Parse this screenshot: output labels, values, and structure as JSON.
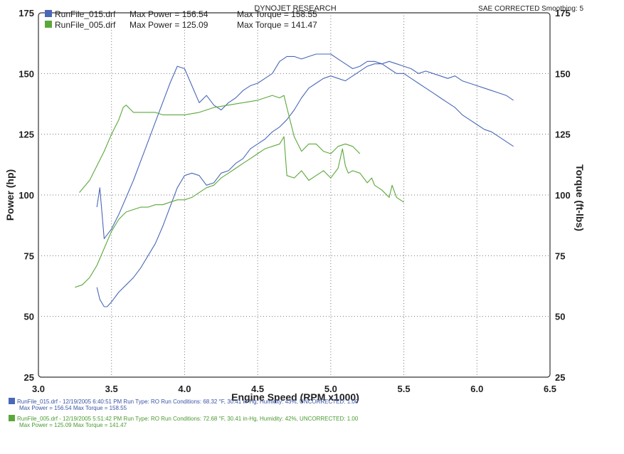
{
  "header": {
    "title": "DYNOJET RESEARCH",
    "corner_text": "SAE CORRECTED Smoothing: 5"
  },
  "legend": [
    {
      "file": "RunFile_015.drf",
      "max_power_label": "Max Power = 156.54",
      "max_torque_label": "Max Torque = 158.55",
      "color": "#4a68b8"
    },
    {
      "file": "RunFile_005.drf",
      "max_power_label": "Max Power = 125.09",
      "max_torque_label": "Max Torque = 141.47",
      "color": "#5ba83a"
    }
  ],
  "footer": [
    {
      "line1": "RunFile_015.drf - 12/19/2005 6:40:51 PM  Run Type: RO  Run Conditions: 68.32 °F, 30.41 in-Hg,  Humidity: 43%, UNCORRECTED: 1.00",
      "line2": "Max Power = 156.54  Max Torque = 158.55"
    },
    {
      "line1": "RunFile_005.drf - 12/19/2005 5:51:42 PM  Run Type: RO  Run Conditions: 72.68 °F, 30.41 in-Hg,  Humidity: 42%, UNCORRECTED: 1.00",
      "line2": "Max Power = 125.09  Max Torque = 141.47"
    }
  ],
  "chart_data": {
    "type": "line",
    "xlabel": "Engine Speed (RPM x1000)",
    "ylabel": "Power (hp)",
    "y2label": "Torque (ft-lbs)",
    "xlim": [
      3.0,
      6.5
    ],
    "ylim": [
      25,
      175
    ],
    "y2lim": [
      25,
      175
    ],
    "x_ticks": [
      "3.0",
      "3.5",
      "4.0",
      "4.5",
      "5.0",
      "5.5",
      "6.0",
      "6.5"
    ],
    "y_ticks": [
      "25",
      "50",
      "75",
      "100",
      "125",
      "150",
      "175"
    ],
    "y2_ticks": [
      "25",
      "50",
      "75",
      "100",
      "125",
      "150",
      "175"
    ],
    "grid": true,
    "series": [
      {
        "name": "RunFile_015.drf Power",
        "color": "#4a68b8",
        "axis": "left",
        "x": [
          3.4,
          3.42,
          3.45,
          3.47,
          3.5,
          3.55,
          3.6,
          3.65,
          3.7,
          3.75,
          3.8,
          3.85,
          3.9,
          3.95,
          4.0,
          4.05,
          4.1,
          4.15,
          4.2,
          4.25,
          4.3,
          4.35,
          4.4,
          4.45,
          4.5,
          4.55,
          4.6,
          4.65,
          4.7,
          4.75,
          4.8,
          4.85,
          4.9,
          4.95,
          5.0,
          5.05,
          5.1,
          5.15,
          5.2,
          5.25,
          5.3,
          5.35,
          5.4,
          5.45,
          5.5,
          5.55,
          5.6,
          5.65,
          5.7,
          5.75,
          5.8,
          5.85,
          5.9,
          5.95,
          6.0,
          6.05,
          6.1,
          6.15,
          6.2,
          6.25
        ],
        "y": [
          62,
          57,
          54,
          54,
          56,
          60,
          63,
          66,
          70,
          75,
          80,
          87,
          95,
          103,
          108,
          109,
          108,
          104,
          105,
          109,
          110,
          113,
          115,
          119,
          121,
          123,
          126,
          128,
          131,
          135,
          140,
          144,
          146,
          148,
          149,
          148,
          147,
          149,
          151,
          153,
          154,
          154,
          155,
          154,
          153,
          152,
          150,
          151,
          150,
          149,
          148,
          149,
          147,
          146,
          145,
          144,
          143,
          142,
          141,
          139
        ]
      },
      {
        "name": "RunFile_015.drf Torque",
        "color": "#4a68b8",
        "axis": "right",
        "x": [
          3.4,
          3.42,
          3.45,
          3.5,
          3.55,
          3.6,
          3.65,
          3.7,
          3.75,
          3.8,
          3.85,
          3.9,
          3.95,
          4.0,
          4.05,
          4.1,
          4.15,
          4.2,
          4.25,
          4.3,
          4.35,
          4.4,
          4.45,
          4.5,
          4.55,
          4.6,
          4.65,
          4.7,
          4.75,
          4.8,
          4.85,
          4.9,
          4.95,
          5.0,
          5.05,
          5.1,
          5.15,
          5.2,
          5.25,
          5.3,
          5.35,
          5.4,
          5.45,
          5.5,
          5.55,
          5.6,
          5.65,
          5.7,
          5.75,
          5.8,
          5.85,
          5.9,
          5.95,
          6.0,
          6.05,
          6.1,
          6.15,
          6.2,
          6.25
        ],
        "y": [
          95,
          103,
          82,
          86,
          92,
          99,
          106,
          114,
          122,
          130,
          138,
          146,
          153,
          152,
          145,
          138,
          141,
          137,
          135,
          138,
          140,
          143,
          145,
          146,
          148,
          150,
          155,
          157,
          157,
          156,
          157,
          158,
          158,
          158,
          156,
          154,
          152,
          153,
          155,
          155,
          154,
          152,
          150,
          150,
          148,
          146,
          144,
          142,
          140,
          138,
          136,
          133,
          131,
          129,
          127,
          126,
          124,
          122,
          120
        ]
      },
      {
        "name": "RunFile_005.drf Power",
        "color": "#5ba83a",
        "axis": "left",
        "x": [
          3.25,
          3.3,
          3.35,
          3.4,
          3.45,
          3.5,
          3.55,
          3.6,
          3.65,
          3.7,
          3.75,
          3.8,
          3.85,
          3.9,
          3.95,
          4.0,
          4.05,
          4.1,
          4.15,
          4.2,
          4.25,
          4.3,
          4.35,
          4.4,
          4.45,
          4.5,
          4.55,
          4.6,
          4.65,
          4.68,
          4.7,
          4.75,
          4.8,
          4.85,
          4.9,
          4.95,
          5.0,
          5.05,
          5.08,
          5.1,
          5.12,
          5.15,
          5.2,
          5.25,
          5.28,
          5.3,
          5.35,
          5.4,
          5.42,
          5.45,
          5.5
        ],
        "y": [
          62,
          63,
          66,
          71,
          78,
          85,
          90,
          93,
          94,
          95,
          95,
          96,
          96,
          97,
          98,
          98,
          99,
          101,
          103,
          104,
          107,
          109,
          111,
          113,
          115,
          117,
          119,
          120,
          121,
          124,
          108,
          107,
          110,
          106,
          108,
          110,
          107,
          111,
          119,
          112,
          109,
          110,
          109,
          105,
          107,
          104,
          102,
          99,
          104,
          99,
          97
        ]
      },
      {
        "name": "RunFile_005.drf Torque",
        "color": "#5ba83a",
        "axis": "right",
        "x": [
          3.28,
          3.35,
          3.4,
          3.45,
          3.5,
          3.55,
          3.58,
          3.6,
          3.65,
          3.7,
          3.75,
          3.8,
          3.85,
          3.9,
          3.95,
          4.0,
          4.1,
          4.2,
          4.3,
          4.4,
          4.5,
          4.55,
          4.6,
          4.65,
          4.68,
          4.7,
          4.75,
          4.8,
          4.85,
          4.9,
          4.95,
          5.0,
          5.05,
          5.1,
          5.15,
          5.2
        ],
        "y": [
          101,
          106,
          112,
          118,
          125,
          131,
          136,
          137,
          134,
          134,
          134,
          134,
          133,
          133,
          133,
          133,
          134,
          136,
          137,
          138,
          139,
          140,
          141,
          140,
          141,
          136,
          124,
          118,
          121,
          121,
          118,
          117,
          120,
          121,
          120,
          117
        ]
      }
    ]
  }
}
